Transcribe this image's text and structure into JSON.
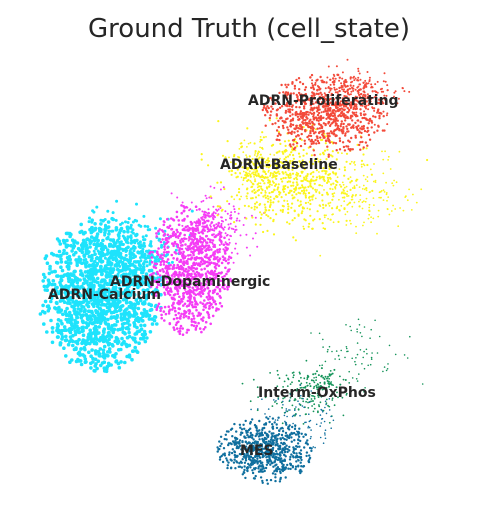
{
  "chart_data": {
    "type": "scatter",
    "title": "Ground Truth (cell_state)",
    "xlabel": "",
    "ylabel": "",
    "axes_visible": false,
    "grid": false,
    "legend": "none (labels placed on clusters)",
    "series": [
      {
        "name": "ADRN-Proliferating",
        "color": "#f34a3a"
      },
      {
        "name": "ADRN-Baseline",
        "color": "#fbf51c"
      },
      {
        "name": "ADRN-Dopaminergic",
        "color": "#f53cf5"
      },
      {
        "name": "ADRN-Calcium",
        "color": "#1ee3fc"
      },
      {
        "name": "Interm-OxPhos",
        "color": "#15945a"
      },
      {
        "name": "MES",
        "color": "#0f6f9e"
      }
    ]
  }
}
